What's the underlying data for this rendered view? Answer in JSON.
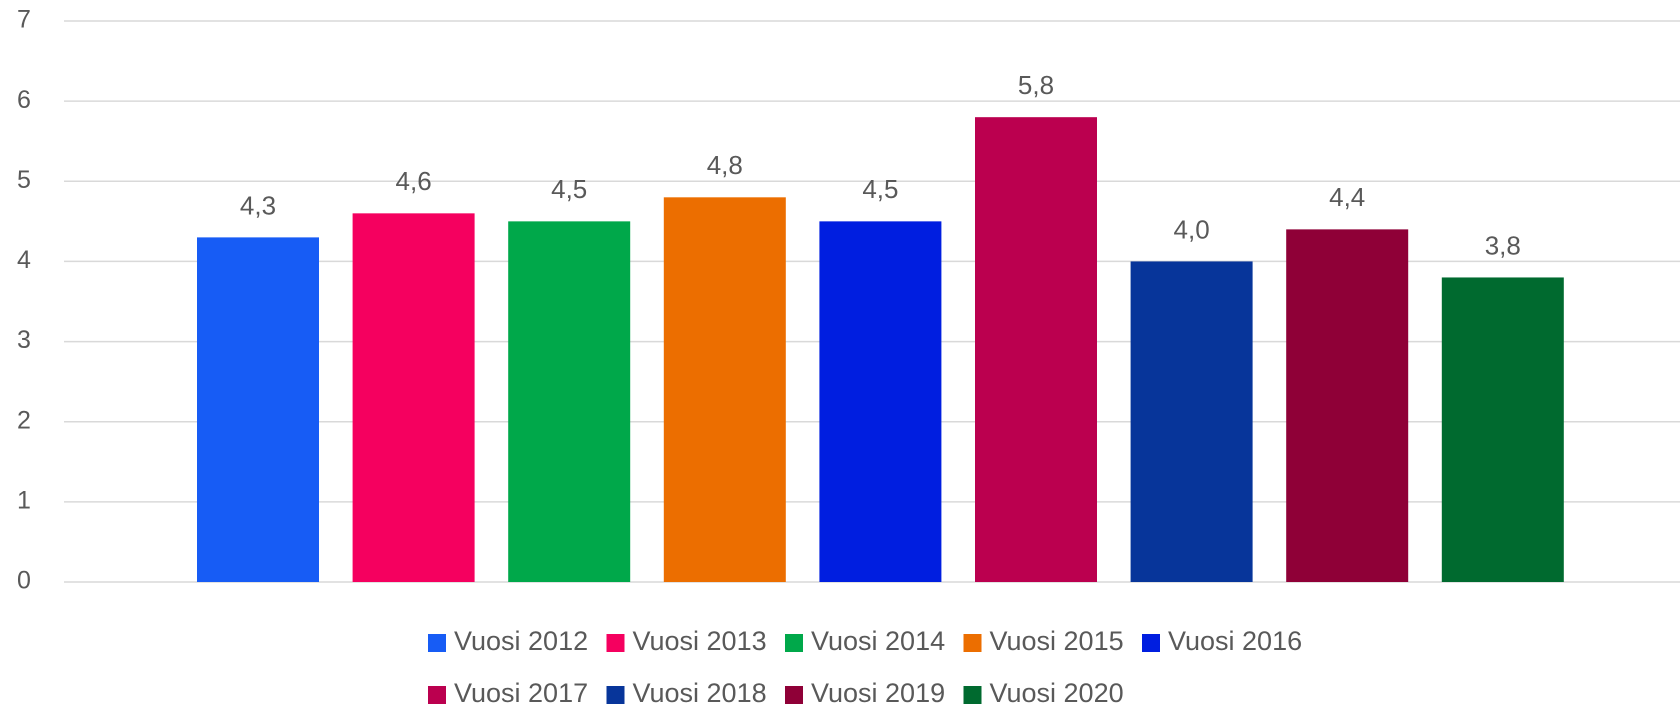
{
  "chart_data": {
    "type": "bar",
    "series": [
      {
        "name": "Vuosi 2012",
        "color": "#175cf5",
        "values": [
          4.3
        ],
        "value_labels": [
          "4,3"
        ]
      },
      {
        "name": "Vuosi 2013",
        "color": "#f5005f",
        "values": [
          4.6
        ],
        "value_labels": [
          "4,6"
        ]
      },
      {
        "name": "Vuosi 2014",
        "color": "#00a84a",
        "values": [
          4.5
        ],
        "value_labels": [
          "4,5"
        ]
      },
      {
        "name": "Vuosi 2015",
        "color": "#ec6e00",
        "values": [
          4.8
        ],
        "value_labels": [
          "4,8"
        ]
      },
      {
        "name": "Vuosi 2016",
        "color": "#001ee0",
        "values": [
          4.5
        ],
        "value_labels": [
          "4,5"
        ]
      },
      {
        "name": "Vuosi 2017",
        "color": "#bb004f",
        "values": [
          5.8
        ],
        "value_labels": [
          "5,8"
        ]
      },
      {
        "name": "Vuosi 2018",
        "color": "#07359a",
        "values": [
          4.0
        ],
        "value_labels": [
          "4,0"
        ]
      },
      {
        "name": "Vuosi 2019",
        "color": "#8f0037",
        "values": [
          4.4
        ],
        "value_labels": [
          "4,4"
        ]
      },
      {
        "name": "Vuosi 2020",
        "color": "#006a2f",
        "values": [
          3.8
        ],
        "value_labels": [
          "3,8"
        ]
      }
    ],
    "ylim": [
      0,
      7
    ],
    "yticks": [
      0,
      1,
      2,
      3,
      4,
      5,
      6,
      7
    ],
    "grid": true,
    "legend": "bottom"
  }
}
